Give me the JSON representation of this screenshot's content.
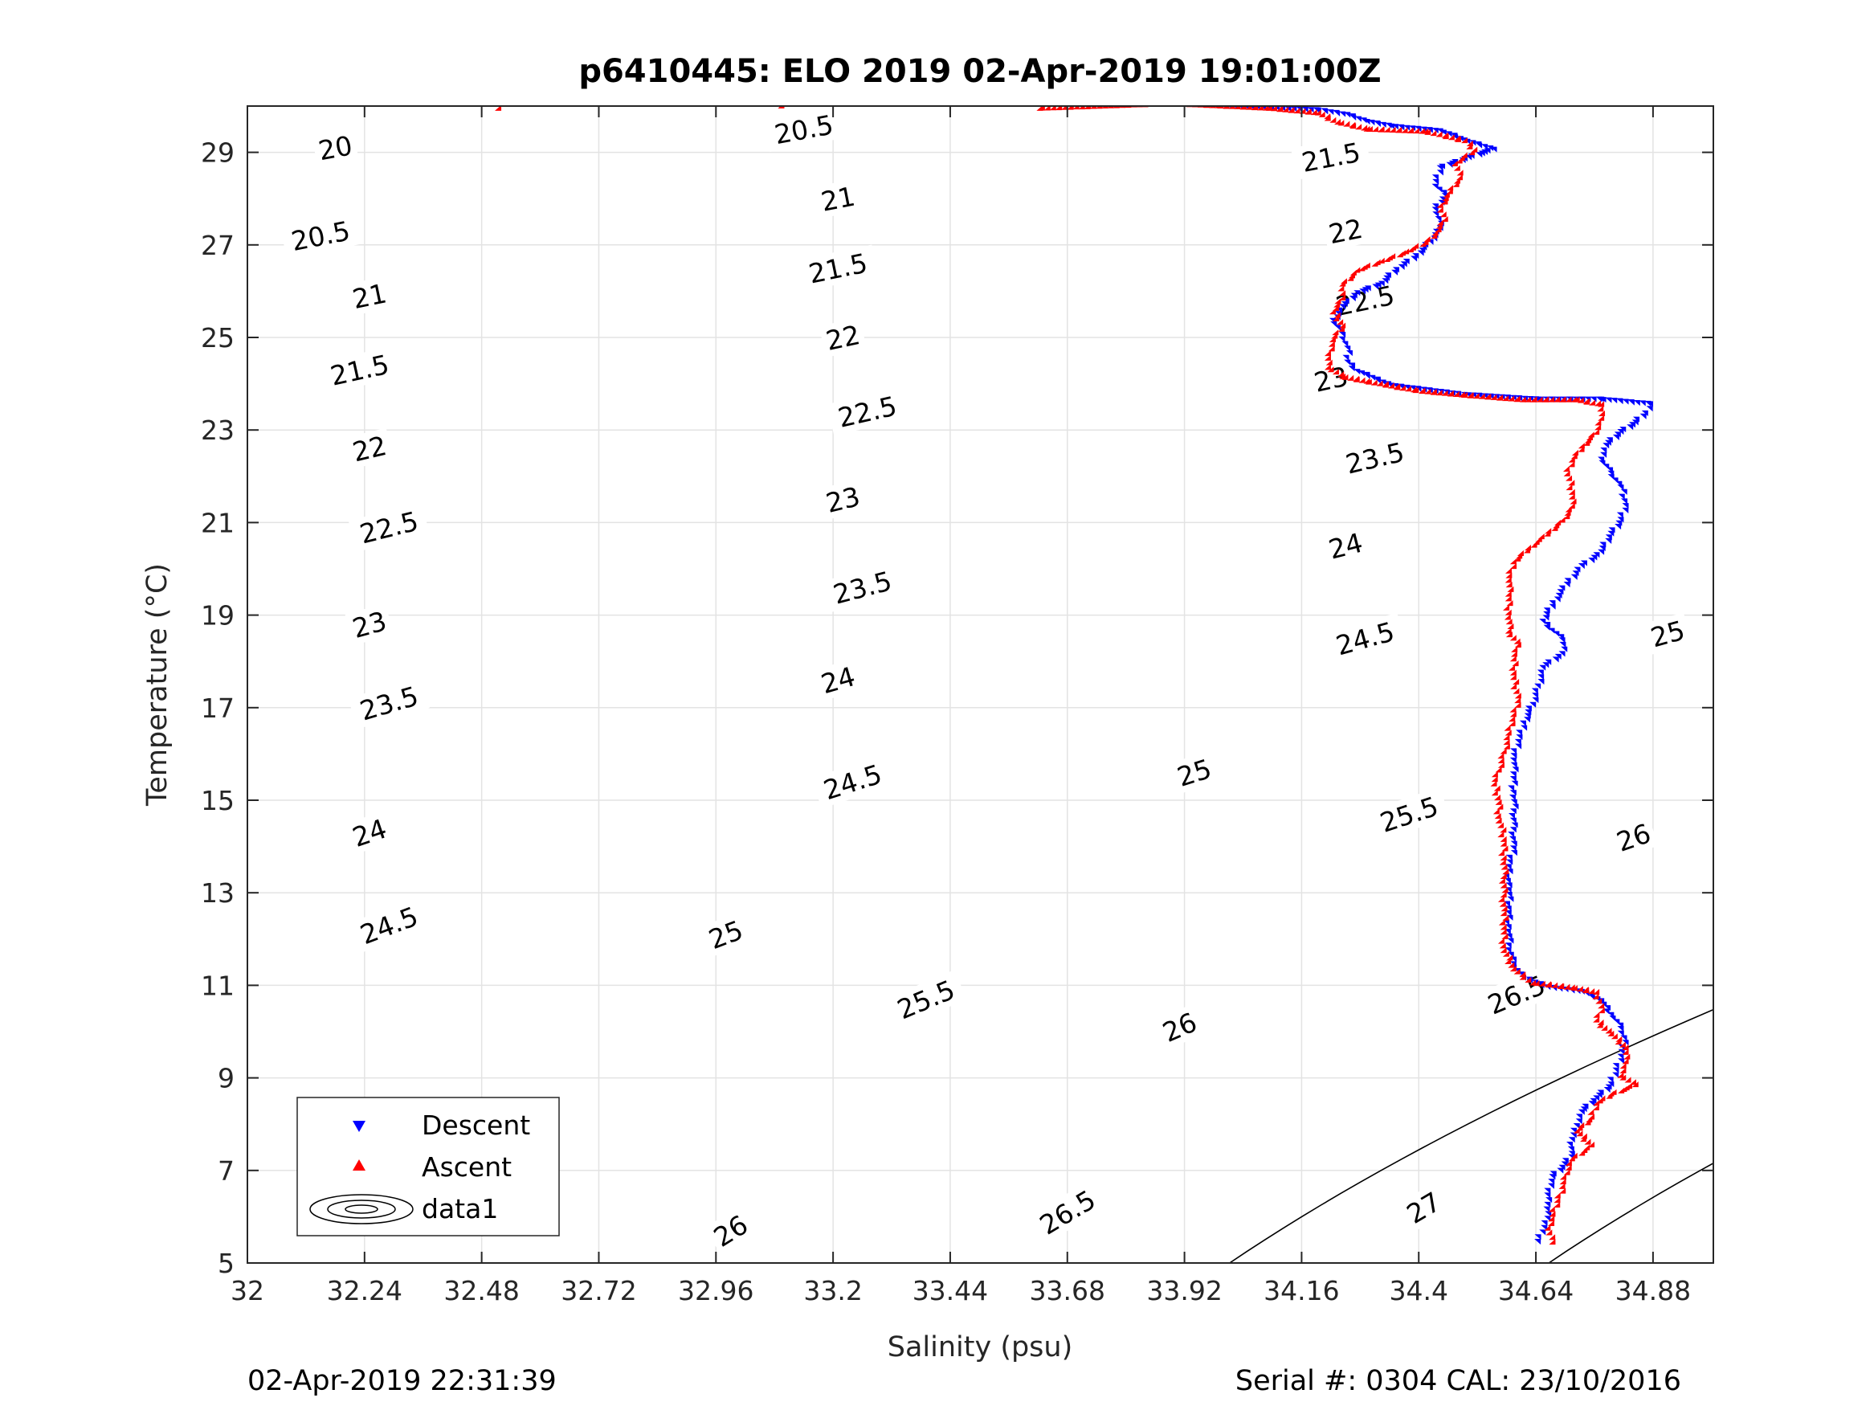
{
  "chart_data": {
    "type": "scatter",
    "title": "p6410445: ELO 2019 02-Apr-2019 19:01:00Z",
    "xlabel": "Salinity (psu)",
    "ylabel": "Temperature (°C)",
    "xlim": [
      32,
      35.0
    ],
    "ylim": [
      5,
      30
    ],
    "x_ticks": [
      "32",
      "32.24",
      "32.48",
      "32.72",
      "32.96",
      "33.2",
      "33.44",
      "33.68",
      "33.92",
      "34.16",
      "34.4",
      "34.64",
      "34.88"
    ],
    "y_ticks": [
      "5",
      "7",
      "9",
      "11",
      "13",
      "15",
      "17",
      "19",
      "21",
      "23",
      "25",
      "27",
      "29"
    ],
    "grid": true,
    "legend": {
      "placement": "bottom-left",
      "entries": [
        "Descent",
        "Ascent",
        "data1"
      ]
    },
    "footer_left": "02-Apr-2019 22:31:39",
    "footer_right": "Serial #: 0304  CAL: 23/10/2016",
    "contour_levels": [
      20,
      20.5,
      21,
      21.5,
      22,
      22.5,
      23,
      23.5,
      24,
      24.5,
      25,
      25.5,
      26,
      26.5,
      27,
      27.5
    ],
    "contour_labels": [
      {
        "text": "20",
        "s": 32.18,
        "t": 29.1
      },
      {
        "text": "20.5",
        "s": 32.15,
        "t": 27.2
      },
      {
        "text": "21",
        "s": 32.25,
        "t": 25.9
      },
      {
        "text": "21.5",
        "s": 32.23,
        "t": 24.3
      },
      {
        "text": "22",
        "s": 32.25,
        "t": 22.6
      },
      {
        "text": "22.5",
        "s": 32.29,
        "t": 20.9
      },
      {
        "text": "23",
        "s": 32.25,
        "t": 18.8
      },
      {
        "text": "23.5",
        "s": 32.29,
        "t": 17.1
      },
      {
        "text": "24",
        "s": 32.25,
        "t": 14.3
      },
      {
        "text": "24.5",
        "s": 32.29,
        "t": 12.3
      },
      {
        "text": "20.5",
        "s": 33.14,
        "t": 29.5
      },
      {
        "text": "21",
        "s": 33.21,
        "t": 28.0
      },
      {
        "text": "21.5",
        "s": 33.21,
        "t": 26.5
      },
      {
        "text": "22",
        "s": 33.22,
        "t": 25.0
      },
      {
        "text": "22.5",
        "s": 33.27,
        "t": 23.4
      },
      {
        "text": "23",
        "s": 33.22,
        "t": 21.5
      },
      {
        "text": "23.5",
        "s": 33.26,
        "t": 19.6
      },
      {
        "text": "24",
        "s": 33.21,
        "t": 17.6
      },
      {
        "text": "24.5",
        "s": 33.24,
        "t": 15.4
      },
      {
        "text": "25",
        "s": 32.98,
        "t": 12.1
      },
      {
        "text": "25.5",
        "s": 33.39,
        "t": 10.7
      },
      {
        "text": "26",
        "s": 33.91,
        "t": 10.1
      },
      {
        "text": "21.5",
        "s": 34.22,
        "t": 28.9
      },
      {
        "text": "22",
        "s": 34.25,
        "t": 27.3
      },
      {
        "text": "22.5",
        "s": 34.29,
        "t": 25.8
      },
      {
        "text": "23",
        "s": 34.22,
        "t": 24.1
      },
      {
        "text": "23.5",
        "s": 34.31,
        "t": 22.4
      },
      {
        "text": "24",
        "s": 34.25,
        "t": 20.5
      },
      {
        "text": "24.5",
        "s": 34.29,
        "t": 18.5
      },
      {
        "text": "25",
        "s": 34.91,
        "t": 18.6
      },
      {
        "text": "25",
        "s": 33.94,
        "t": 15.6
      },
      {
        "text": "25.5",
        "s": 34.38,
        "t": 14.7
      },
      {
        "text": "26",
        "s": 34.84,
        "t": 14.2
      },
      {
        "text": "26.5",
        "s": 34.6,
        "t": 10.8
      },
      {
        "text": "25.5",
        "s": 32.49,
        "t": 6.7
      },
      {
        "text": "26",
        "s": 32.99,
        "t": 5.7
      },
      {
        "text": "26.5",
        "s": 33.68,
        "t": 6.1
      },
      {
        "text": "27",
        "s": 34.41,
        "t": 6.2
      }
    ],
    "series": [
      {
        "name": "Descent",
        "marker": "triangle-down",
        "color": "#0000ff",
        "points": [
          [
            33.92,
            30.0
          ],
          [
            34.0,
            29.95
          ],
          [
            34.1,
            29.9
          ],
          [
            34.2,
            29.85
          ],
          [
            34.26,
            29.75
          ],
          [
            34.3,
            29.6
          ],
          [
            34.35,
            29.5
          ],
          [
            34.45,
            29.4
          ],
          [
            34.5,
            29.2
          ],
          [
            34.56,
            29.0
          ],
          [
            34.5,
            28.8
          ],
          [
            34.45,
            28.6
          ],
          [
            34.44,
            28.2
          ],
          [
            34.46,
            28.0
          ],
          [
            34.44,
            27.7
          ],
          [
            34.45,
            27.3
          ],
          [
            34.43,
            27.0
          ],
          [
            34.4,
            26.7
          ],
          [
            34.36,
            26.4
          ],
          [
            34.33,
            26.1
          ],
          [
            34.28,
            25.9
          ],
          [
            34.25,
            25.6
          ],
          [
            34.23,
            25.3
          ],
          [
            34.25,
            25.0
          ],
          [
            34.26,
            24.7
          ],
          [
            34.26,
            24.4
          ],
          [
            34.28,
            24.2
          ],
          [
            34.35,
            23.9
          ],
          [
            34.5,
            23.7
          ],
          [
            34.65,
            23.6
          ],
          [
            34.78,
            23.6
          ],
          [
            34.88,
            23.5
          ],
          [
            34.87,
            23.3
          ],
          [
            34.85,
            23.1
          ],
          [
            34.82,
            22.9
          ],
          [
            34.79,
            22.6
          ],
          [
            34.78,
            22.3
          ],
          [
            34.8,
            22.0
          ],
          [
            34.82,
            21.7
          ],
          [
            34.83,
            21.3
          ],
          [
            34.82,
            21.0
          ],
          [
            34.8,
            20.7
          ],
          [
            34.78,
            20.3
          ],
          [
            34.74,
            20.0
          ],
          [
            34.71,
            19.6
          ],
          [
            34.68,
            19.2
          ],
          [
            34.66,
            18.8
          ],
          [
            34.7,
            18.4
          ],
          [
            34.7,
            18.1
          ],
          [
            34.66,
            17.8
          ],
          [
            34.65,
            17.4
          ],
          [
            34.64,
            17.0
          ],
          [
            34.62,
            16.6
          ],
          [
            34.61,
            16.2
          ],
          [
            34.6,
            15.8
          ],
          [
            34.6,
            15.5
          ],
          [
            34.6,
            15.1
          ],
          [
            34.6,
            14.7
          ],
          [
            34.6,
            14.3
          ],
          [
            34.6,
            13.9
          ],
          [
            34.59,
            13.5
          ],
          [
            34.59,
            13.0
          ],
          [
            34.59,
            12.6
          ],
          [
            34.59,
            12.2
          ],
          [
            34.59,
            11.8
          ],
          [
            34.6,
            11.4
          ],
          [
            34.62,
            11.1
          ],
          [
            34.67,
            10.9
          ],
          [
            34.74,
            10.8
          ],
          [
            34.78,
            10.6
          ],
          [
            34.8,
            10.3
          ],
          [
            34.82,
            10.0
          ],
          [
            34.83,
            9.7
          ],
          [
            34.82,
            9.4
          ],
          [
            34.81,
            9.1
          ],
          [
            34.8,
            8.8
          ],
          [
            34.77,
            8.5
          ],
          [
            34.74,
            8.2
          ],
          [
            34.73,
            7.9
          ],
          [
            34.72,
            7.6
          ],
          [
            34.72,
            7.3
          ],
          [
            34.7,
            7.0
          ],
          [
            34.68,
            6.8
          ],
          [
            34.67,
            6.5
          ],
          [
            34.67,
            6.2
          ],
          [
            34.67,
            5.9
          ],
          [
            34.66,
            5.6
          ],
          [
            34.65,
            5.4
          ]
        ]
      },
      {
        "name": "Ascent",
        "marker": "triangle-up",
        "color": "#ff0000",
        "points": [
          [
            32.52,
            29.9
          ],
          [
            33.1,
            29.95
          ],
          [
            33.63,
            29.9
          ],
          [
            33.9,
            30.0
          ],
          [
            34.0,
            29.95
          ],
          [
            34.1,
            29.9
          ],
          [
            34.2,
            29.8
          ],
          [
            34.24,
            29.6
          ],
          [
            34.3,
            29.45
          ],
          [
            34.42,
            29.4
          ],
          [
            34.5,
            29.2
          ],
          [
            34.52,
            29.0
          ],
          [
            34.48,
            28.7
          ],
          [
            34.49,
            28.4
          ],
          [
            34.47,
            28.1
          ],
          [
            34.45,
            27.8
          ],
          [
            34.46,
            27.5
          ],
          [
            34.44,
            27.2
          ],
          [
            34.42,
            27.0
          ],
          [
            34.38,
            26.8
          ],
          [
            34.33,
            26.6
          ],
          [
            34.28,
            26.4
          ],
          [
            34.25,
            26.1
          ],
          [
            34.25,
            25.8
          ],
          [
            34.23,
            25.5
          ],
          [
            34.25,
            25.2
          ],
          [
            34.23,
            24.9
          ],
          [
            34.22,
            24.6
          ],
          [
            34.22,
            24.3
          ],
          [
            34.25,
            24.1
          ],
          [
            34.3,
            24.0
          ],
          [
            34.4,
            23.8
          ],
          [
            34.5,
            23.7
          ],
          [
            34.62,
            23.6
          ],
          [
            34.73,
            23.6
          ],
          [
            34.78,
            23.5
          ],
          [
            34.78,
            23.2
          ],
          [
            34.77,
            22.9
          ],
          [
            34.74,
            22.6
          ],
          [
            34.72,
            22.3
          ],
          [
            34.71,
            22.0
          ],
          [
            34.72,
            21.6
          ],
          [
            34.72,
            21.3
          ],
          [
            34.7,
            21.0
          ],
          [
            34.67,
            20.7
          ],
          [
            34.63,
            20.4
          ],
          [
            34.6,
            20.1
          ],
          [
            34.59,
            19.7
          ],
          [
            34.59,
            19.4
          ],
          [
            34.59,
            19.0
          ],
          [
            34.59,
            18.6
          ],
          [
            34.61,
            18.3
          ],
          [
            34.6,
            18.0
          ],
          [
            34.6,
            17.6
          ],
          [
            34.61,
            17.2
          ],
          [
            34.6,
            16.8
          ],
          [
            34.59,
            16.4
          ],
          [
            34.58,
            16.0
          ],
          [
            34.57,
            15.6
          ],
          [
            34.56,
            15.3
          ],
          [
            34.57,
            14.9
          ],
          [
            34.57,
            14.5
          ],
          [
            34.58,
            14.1
          ],
          [
            34.58,
            13.7
          ],
          [
            34.58,
            13.3
          ],
          [
            34.58,
            12.9
          ],
          [
            34.58,
            12.5
          ],
          [
            34.58,
            12.1
          ],
          [
            34.58,
            11.7
          ],
          [
            34.6,
            11.3
          ],
          [
            34.64,
            11.0
          ],
          [
            34.72,
            10.9
          ],
          [
            34.77,
            10.8
          ],
          [
            34.78,
            10.5
          ],
          [
            34.77,
            10.2
          ],
          [
            34.8,
            9.9
          ],
          [
            34.83,
            9.6
          ],
          [
            34.83,
            9.3
          ],
          [
            34.82,
            9.0
          ],
          [
            34.85,
            8.8
          ],
          [
            34.8,
            8.6
          ],
          [
            34.77,
            8.4
          ],
          [
            34.76,
            8.1
          ],
          [
            34.73,
            7.8
          ],
          [
            34.76,
            7.5
          ],
          [
            34.72,
            7.2
          ],
          [
            34.71,
            6.9
          ],
          [
            34.7,
            6.6
          ],
          [
            34.69,
            6.3
          ],
          [
            34.68,
            6.0
          ],
          [
            34.67,
            5.7
          ],
          [
            34.68,
            5.4
          ]
        ]
      }
    ]
  }
}
